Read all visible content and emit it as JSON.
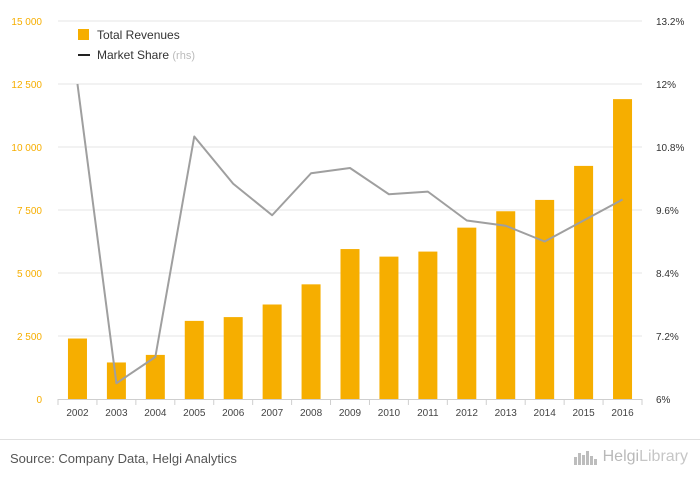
{
  "chart_data": {
    "type": "bar+line",
    "categories": [
      "2002",
      "2003",
      "2004",
      "2005",
      "2006",
      "2007",
      "2008",
      "2009",
      "2010",
      "2011",
      "2012",
      "2013",
      "2014",
      "2015",
      "2016"
    ],
    "series": [
      {
        "name": "Total Revenues",
        "type": "bar",
        "axis": "left",
        "values": [
          2400,
          1450,
          1750,
          3100,
          3250,
          3750,
          4550,
          5950,
          5650,
          5850,
          6800,
          7450,
          7900,
          9250,
          11900
        ]
      },
      {
        "name": "Market Share",
        "legend_suffix": "(rhs)",
        "type": "line",
        "axis": "right",
        "values": [
          12.0,
          6.3,
          6.8,
          11.0,
          10.1,
          9.5,
          10.3,
          10.4,
          9.9,
          9.95,
          9.4,
          9.3,
          9.0,
          9.4,
          9.8
        ]
      }
    ],
    "y_left": {
      "ticks": [
        "0",
        "2 500",
        "5 000",
        "7 500",
        "10 000",
        "12 500",
        "15 000"
      ],
      "lim": [
        0,
        15000
      ]
    },
    "y_right": {
      "ticks": [
        "6%",
        "7.2%",
        "8.4%",
        "9.6%",
        "10.8%",
        "12%",
        "13.2%"
      ],
      "lim": [
        6,
        13.2
      ]
    },
    "colors": {
      "bar": "#f6ae00",
      "line": "#9f9f9f",
      "left_axis_text": "#f6ae00",
      "right_axis_text": "#333333"
    },
    "grid": true,
    "legend_position": "top-left"
  },
  "footer": {
    "source": "Source: Company Data, Helgi Analytics",
    "brand_bold": "Helgi",
    "brand_thin": "Library"
  }
}
